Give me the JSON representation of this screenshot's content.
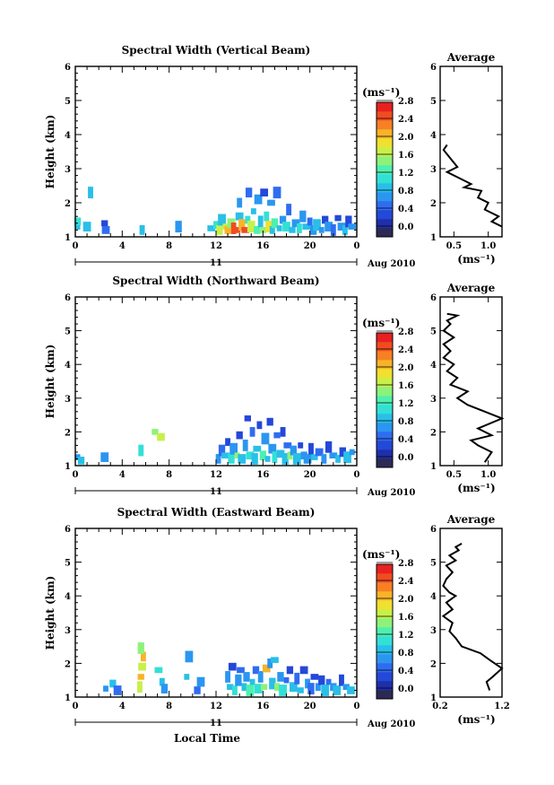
{
  "x_label": "Local Time",
  "y_label": "Height (km)",
  "day_label": "11",
  "date_label": "Aug 2010",
  "unit_label": "(ms⁻¹)",
  "avg_title": "Average",
  "colorbar_ticks": [
    "0.0",
    "0.4",
    "0.8",
    "1.2",
    "1.6",
    "2.0",
    "2.4",
    "2.8"
  ],
  "colors": {
    "colorbar": [
      "#2a2a55",
      "#1f2fa8",
      "#2448d8",
      "#2f6cf0",
      "#2b96f0",
      "#29bfe8",
      "#33e0d6",
      "#4ef0b0",
      "#8ef27a",
      "#c8f04a",
      "#f0e030",
      "#f8b428",
      "#f88024",
      "#f04c22",
      "#e82020"
    ]
  },
  "chart_data": [
    {
      "type": "heatmap",
      "title": "Spectral Width (Vertical Beam)",
      "xlabel": "",
      "ylabel": "Height (km)",
      "xlim": [
        0,
        24
      ],
      "ylim": [
        1,
        6
      ],
      "xticks": [
        "0",
        "4",
        "8",
        "12",
        "16",
        "20",
        "0"
      ],
      "yticks": [
        "1",
        "2",
        "3",
        "4",
        "5",
        "6"
      ],
      "clim": [
        0,
        3.0
      ],
      "cells": [
        [
          0.2,
          1.3,
          1.2
        ],
        [
          0.2,
          1.45,
          1.3
        ],
        [
          1.0,
          1.3,
          1.0
        ],
        [
          1.3,
          2.3,
          1.2
        ],
        [
          2.5,
          1.4,
          0.6
        ],
        [
          2.6,
          1.2,
          0.7
        ],
        [
          5.7,
          1.2,
          1.0
        ],
        [
          8.8,
          1.3,
          0.9
        ],
        [
          11.6,
          1.25,
          1.2
        ],
        [
          12.0,
          1.35,
          1.4
        ],
        [
          12.3,
          1.2,
          1.8
        ],
        [
          12.5,
          1.5,
          1.0
        ],
        [
          12.8,
          1.3,
          1.9
        ],
        [
          13.0,
          1.2,
          2.3
        ],
        [
          13.3,
          1.4,
          1.6
        ],
        [
          13.5,
          1.25,
          2.6
        ],
        [
          13.8,
          1.2,
          2.8
        ],
        [
          14.0,
          1.6,
          1.1
        ],
        [
          14.0,
          2.0,
          0.8
        ],
        [
          14.2,
          1.35,
          2.2
        ],
        [
          14.5,
          1.2,
          2.7
        ],
        [
          14.7,
          1.5,
          1.3
        ],
        [
          14.8,
          2.3,
          0.7
        ],
        [
          15.0,
          1.3,
          1.9
        ],
        [
          15.2,
          1.75,
          1.0
        ],
        [
          15.5,
          1.2,
          1.5
        ],
        [
          15.6,
          2.1,
          0.9
        ],
        [
          15.8,
          1.45,
          1.2
        ],
        [
          16.0,
          1.2,
          1.7
        ],
        [
          16.1,
          2.3,
          0.6
        ],
        [
          16.3,
          1.6,
          1.3
        ],
        [
          16.5,
          1.3,
          2.0
        ],
        [
          16.7,
          2.0,
          0.9
        ],
        [
          16.8,
          1.2,
          1.1
        ],
        [
          17.0,
          1.4,
          1.5
        ],
        [
          17.2,
          2.3,
          0.7
        ],
        [
          17.4,
          1.25,
          1.2
        ],
        [
          17.7,
          1.5,
          0.8
        ],
        [
          18.0,
          1.3,
          1.4
        ],
        [
          18.2,
          1.8,
          0.7
        ],
        [
          18.5,
          1.2,
          1.0
        ],
        [
          18.8,
          1.4,
          0.9
        ],
        [
          19.1,
          1.25,
          1.3
        ],
        [
          19.4,
          1.6,
          0.8
        ],
        [
          19.7,
          1.3,
          1.1
        ],
        [
          20.0,
          1.45,
          0.7
        ],
        [
          20.3,
          1.2,
          0.9
        ],
        [
          20.6,
          1.35,
          1.0
        ],
        [
          21.0,
          1.2,
          0.8
        ],
        [
          21.3,
          1.5,
          0.6
        ],
        [
          21.6,
          1.3,
          0.9
        ],
        [
          22.0,
          1.2,
          0.7
        ],
        [
          22.4,
          1.55,
          0.5
        ],
        [
          22.7,
          1.3,
          0.8
        ],
        [
          23.0,
          1.2,
          1.0
        ],
        [
          23.3,
          1.45,
          0.6
        ],
        [
          23.6,
          1.3,
          0.9
        ]
      ]
    },
    {
      "type": "heatmap",
      "title": "Spectral Width (Northward Beam)",
      "xlabel": "",
      "ylabel": "Height (km)",
      "xlim": [
        0,
        24
      ],
      "ylim": [
        1,
        6
      ],
      "xticks": [
        "0",
        "4",
        "8",
        "12",
        "16",
        "20",
        "0"
      ],
      "yticks": [
        "1",
        "2",
        "3",
        "4",
        "5",
        "6"
      ],
      "clim": [
        0,
        3.0
      ],
      "cells": [
        [
          0.2,
          1.25,
          0.9
        ],
        [
          0.5,
          1.15,
          1.2
        ],
        [
          2.5,
          1.25,
          0.8
        ],
        [
          5.6,
          1.45,
          1.4
        ],
        [
          6.8,
          2.0,
          1.6
        ],
        [
          7.3,
          1.85,
          1.8
        ],
        [
          12.2,
          1.2,
          0.9
        ],
        [
          12.5,
          1.45,
          0.7
        ],
        [
          12.8,
          1.3,
          1.1
        ],
        [
          13.0,
          1.7,
          0.6
        ],
        [
          13.3,
          1.2,
          1.3
        ],
        [
          13.5,
          1.5,
          0.8
        ],
        [
          13.8,
          1.3,
          1.6
        ],
        [
          14.0,
          1.9,
          0.6
        ],
        [
          14.2,
          1.2,
          1.2
        ],
        [
          14.5,
          1.6,
          0.9
        ],
        [
          14.7,
          2.4,
          0.5
        ],
        [
          14.9,
          1.3,
          1.4
        ],
        [
          15.1,
          2.0,
          0.7
        ],
        [
          15.3,
          1.2,
          1.0
        ],
        [
          15.5,
          1.5,
          1.2
        ],
        [
          15.7,
          2.2,
          0.6
        ],
        [
          16.0,
          1.3,
          1.5
        ],
        [
          16.2,
          1.8,
          0.8
        ],
        [
          16.4,
          1.2,
          1.1
        ],
        [
          16.6,
          2.3,
          0.6
        ],
        [
          16.8,
          1.5,
          0.9
        ],
        [
          17.0,
          1.25,
          1.3
        ],
        [
          17.2,
          1.9,
          0.7
        ],
        [
          17.5,
          1.35,
          1.0
        ],
        [
          17.7,
          2.0,
          0.6
        ],
        [
          17.9,
          1.2,
          1.2
        ],
        [
          18.1,
          1.6,
          0.7
        ],
        [
          18.3,
          1.3,
          1.6
        ],
        [
          18.6,
          1.45,
          0.9
        ],
        [
          18.9,
          1.2,
          1.1
        ],
        [
          19.2,
          1.6,
          0.6
        ],
        [
          19.5,
          1.3,
          0.9
        ],
        [
          19.8,
          1.2,
          0.8
        ],
        [
          20.1,
          1.5,
          0.5
        ],
        [
          20.4,
          1.25,
          1.0
        ],
        [
          20.8,
          1.4,
          0.7
        ],
        [
          21.2,
          1.2,
          0.9
        ],
        [
          21.6,
          1.55,
          0.6
        ],
        [
          22.0,
          1.3,
          0.8
        ],
        [
          22.4,
          1.2,
          1.0
        ],
        [
          22.8,
          1.4,
          0.6
        ],
        [
          23.2,
          1.25,
          1.2
        ],
        [
          23.6,
          1.4,
          0.9
        ]
      ]
    },
    {
      "type": "heatmap",
      "title": "Spectral Width (Eastward Beam)",
      "xlabel": "Local Time",
      "ylabel": "Height (km)",
      "xlim": [
        0,
        24
      ],
      "ylim": [
        1,
        6
      ],
      "xticks": [
        "0",
        "4",
        "8",
        "12",
        "16",
        "20",
        "0"
      ],
      "yticks": [
        "1",
        "2",
        "3",
        "4",
        "5",
        "6"
      ],
      "clim": [
        0,
        3.0
      ],
      "cells": [
        [
          2.6,
          1.25,
          0.9
        ],
        [
          3.2,
          1.4,
          1.0
        ],
        [
          3.6,
          1.2,
          0.7
        ],
        [
          5.5,
          1.3,
          1.8
        ],
        [
          5.6,
          1.6,
          2.2
        ],
        [
          5.7,
          1.9,
          1.9
        ],
        [
          5.8,
          2.2,
          2.4
        ],
        [
          5.6,
          2.45,
          1.6
        ],
        [
          7.1,
          1.8,
          1.4
        ],
        [
          7.4,
          1.45,
          1.0
        ],
        [
          7.6,
          1.25,
          0.8
        ],
        [
          9.7,
          2.2,
          0.9
        ],
        [
          9.5,
          1.6,
          1.0
        ],
        [
          10.4,
          1.2,
          0.7
        ],
        [
          10.7,
          1.45,
          0.8
        ],
        [
          13.0,
          1.6,
          0.8
        ],
        [
          13.2,
          1.3,
          1.1
        ],
        [
          13.4,
          1.9,
          0.6
        ],
        [
          13.6,
          1.2,
          1.4
        ],
        [
          13.9,
          1.5,
          0.9
        ],
        [
          14.1,
          1.8,
          0.7
        ],
        [
          14.4,
          1.3,
          1.2
        ],
        [
          14.6,
          1.6,
          0.8
        ],
        [
          14.9,
          1.2,
          1.5
        ],
        [
          15.1,
          1.45,
          1.0
        ],
        [
          15.4,
          1.8,
          0.7
        ],
        [
          15.6,
          1.25,
          1.3
        ],
        [
          15.8,
          1.6,
          0.8
        ],
        [
          16.1,
          1.3,
          1.6
        ],
        [
          16.3,
          1.85,
          2.4
        ],
        [
          16.6,
          2.0,
          0.9
        ],
        [
          16.8,
          1.4,
          1.2
        ],
        [
          17.0,
          2.1,
          1.0
        ],
        [
          17.2,
          1.3,
          1.7
        ],
        [
          17.5,
          1.6,
          0.8
        ],
        [
          17.7,
          1.2,
          1.3
        ],
        [
          18.0,
          1.5,
          0.7
        ],
        [
          18.3,
          1.8,
          0.6
        ],
        [
          18.6,
          1.3,
          1.0
        ],
        [
          18.9,
          1.55,
          0.7
        ],
        [
          19.2,
          1.2,
          1.2
        ],
        [
          19.5,
          1.8,
          0.6
        ],
        [
          19.8,
          1.4,
          0.9
        ],
        [
          20.1,
          1.25,
          0.7
        ],
        [
          20.4,
          1.6,
          0.6
        ],
        [
          20.7,
          1.3,
          0.8
        ],
        [
          21.0,
          1.5,
          0.6
        ],
        [
          21.3,
          1.2,
          1.0
        ],
        [
          21.6,
          1.45,
          0.7
        ],
        [
          22.0,
          1.3,
          0.8
        ],
        [
          22.3,
          1.2,
          1.1
        ],
        [
          22.7,
          1.5,
          0.6
        ],
        [
          23.1,
          1.3,
          0.8
        ],
        [
          23.5,
          1.2,
          1.0
        ]
      ]
    },
    {
      "type": "line",
      "title": "Average",
      "xlabel": "(ms⁻¹)",
      "ylabel": "",
      "xlim": [
        0.3,
        1.2
      ],
      "ylim": [
        1,
        6
      ],
      "xticks": [
        "0.5",
        "1.0"
      ],
      "yticks": [
        "1",
        "2",
        "3",
        "4",
        "5",
        "6"
      ],
      "x": [
        1.2,
        1.05,
        1.15,
        0.95,
        1.0,
        0.85,
        0.9,
        0.65,
        0.75,
        0.6,
        0.4,
        0.55,
        0.45,
        0.35,
        0.4
      ],
      "y": [
        1.3,
        1.45,
        1.6,
        1.8,
        2.0,
        2.15,
        2.35,
        2.45,
        2.55,
        2.7,
        2.9,
        3.05,
        3.3,
        3.55,
        3.7
      ]
    },
    {
      "type": "line",
      "title": "Average",
      "xlabel": "(ms⁻¹)",
      "ylabel": "",
      "xlim": [
        0.3,
        1.2
      ],
      "ylim": [
        1,
        6
      ],
      "xticks": [
        "0.5",
        "1.0"
      ],
      "yticks": [
        "1",
        "2",
        "3",
        "4",
        "5",
        "6"
      ],
      "x": [
        0.95,
        1.05,
        0.85,
        0.75,
        1.05,
        0.85,
        1.2,
        0.95,
        0.7,
        0.55,
        0.7,
        0.45,
        0.55,
        0.4,
        0.5,
        0.35,
        0.45,
        0.35,
        0.5,
        0.35,
        0.45,
        0.4,
        0.55,
        0.4
      ],
      "y": [
        1.1,
        1.4,
        1.6,
        1.75,
        1.9,
        2.1,
        2.4,
        2.6,
        2.8,
        3.0,
        3.2,
        3.4,
        3.6,
        3.8,
        4.0,
        4.2,
        4.4,
        4.6,
        4.8,
        5.0,
        5.2,
        5.3,
        5.45,
        5.5
      ]
    },
    {
      "type": "line",
      "title": "Average",
      "xlabel": "(ms⁻¹)",
      "ylabel": "",
      "xlim": [
        0.2,
        1.2
      ],
      "ylim": [
        1,
        6
      ],
      "xticks": [
        "0.2",
        "1.2"
      ],
      "yticks": [
        "1",
        "2",
        "3",
        "4",
        "5",
        "6"
      ],
      "x": [
        1.0,
        0.95,
        1.05,
        1.2,
        1.0,
        0.85,
        0.55,
        0.45,
        0.35,
        0.4,
        0.25,
        0.4,
        0.3,
        0.45,
        0.35,
        0.25,
        0.3,
        0.4,
        0.3,
        0.45,
        0.35,
        0.5,
        0.45,
        0.55
      ],
      "y": [
        1.2,
        1.45,
        1.6,
        1.85,
        2.1,
        2.3,
        2.5,
        2.75,
        2.95,
        3.2,
        3.4,
        3.6,
        3.8,
        4.0,
        4.1,
        4.3,
        4.5,
        4.7,
        4.9,
        5.05,
        5.2,
        5.35,
        5.45,
        5.55
      ]
    }
  ]
}
